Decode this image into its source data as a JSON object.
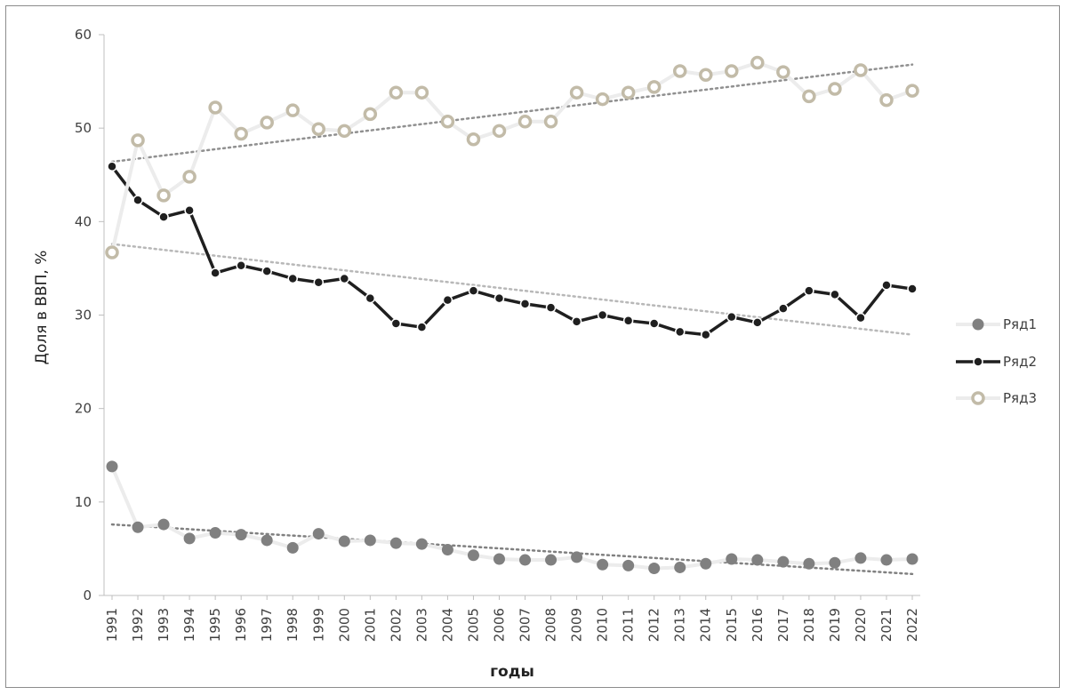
{
  "chart_data": {
    "type": "line",
    "xlabel": "годы",
    "ylabel": "Доля в ВВП, %",
    "ylim": [
      0,
      60
    ],
    "yticks": [
      0,
      10,
      20,
      30,
      40,
      50,
      60
    ],
    "grid": false,
    "legend_position": "right",
    "categories": [
      "1991",
      "1992",
      "1993",
      "1994",
      "1995",
      "1996",
      "1997",
      "1998",
      "1999",
      "2000",
      "2001",
      "2002",
      "2003",
      "2004",
      "2005",
      "2006",
      "2007",
      "2008",
      "2009",
      "2010",
      "2011",
      "2012",
      "2013",
      "2014",
      "2015",
      "2016",
      "2017",
      "2018",
      "2019",
      "2020",
      "2021",
      "2022"
    ],
    "series": [
      {
        "name": "Ряд1",
        "color": "#808080",
        "line_color": "#ececec",
        "marker": "filled",
        "values": [
          13.8,
          7.3,
          7.6,
          6.1,
          6.7,
          6.5,
          5.9,
          5.1,
          6.6,
          5.8,
          5.9,
          5.6,
          5.5,
          4.9,
          4.3,
          3.9,
          3.8,
          3.8,
          4.1,
          3.3,
          3.2,
          2.9,
          3.0,
          3.4,
          3.9,
          3.8,
          3.6,
          3.4,
          3.5,
          4.0,
          3.8,
          3.9
        ]
      },
      {
        "name": "Ряд2",
        "color": "#1f1f1f",
        "line_color": "#1f1f1f",
        "marker": "filled",
        "values": [
          45.9,
          42.3,
          40.5,
          41.2,
          34.5,
          35.3,
          34.7,
          33.9,
          33.5,
          33.9,
          31.8,
          29.1,
          28.7,
          31.6,
          32.6,
          31.8,
          31.2,
          30.8,
          29.3,
          30.0,
          29.4,
          29.1,
          28.2,
          27.9,
          29.8,
          29.2,
          30.7,
          32.6,
          32.2,
          29.7,
          33.2,
          32.8
        ]
      },
      {
        "name": "Ряд3",
        "color": "#c2bba8",
        "line_color": "#ececec",
        "marker": "hollow",
        "values": [
          36.7,
          48.7,
          42.8,
          44.8,
          52.2,
          49.4,
          50.6,
          51.9,
          49.9,
          49.7,
          51.5,
          53.8,
          53.8,
          50.7,
          48.8,
          49.7,
          50.7,
          50.7,
          53.8,
          53.1,
          53.8,
          54.4,
          56.1,
          55.7,
          56.1,
          57.0,
          56.0,
          53.4,
          54.2,
          56.2,
          53.0,
          54.0
        ]
      }
    ],
    "trendlines": [
      {
        "series": "Ряд1",
        "color": "#808080",
        "start": 7.6,
        "end": 2.3
      },
      {
        "series": "Ряд2",
        "color": "#b8b8b8",
        "start": 37.6,
        "end": 27.9
      },
      {
        "series": "Ряд3",
        "color": "#909090",
        "start": 46.4,
        "end": 56.8
      }
    ]
  }
}
